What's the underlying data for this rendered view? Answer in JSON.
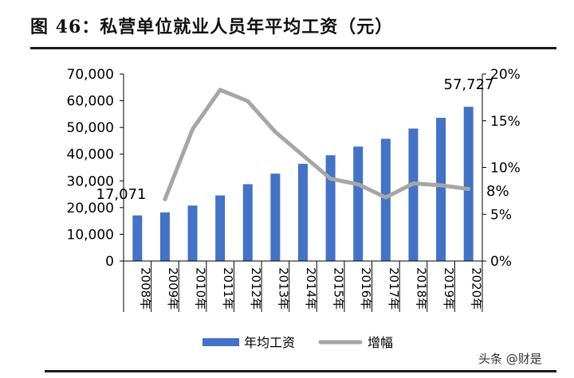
{
  "title": "图 46：私营单位就业人员年平均工资（元）",
  "watermark": "头条 @财是",
  "chart_data": {
    "type": "bar",
    "categories": [
      "2008年",
      "2009年",
      "2010年",
      "2011年",
      "2012年",
      "2013年",
      "2014年",
      "2015年",
      "2016年",
      "2017年",
      "2018年",
      "2019年",
      "2020年"
    ],
    "series": [
      {
        "name": "年均工资",
        "type": "bar",
        "axis": "left",
        "color": "#4472c4",
        "values": [
          17071,
          18199,
          20759,
          24556,
          28752,
          32706,
          36390,
          39589,
          42833,
          45761,
          49575,
          53604,
          57727
        ]
      },
      {
        "name": "增幅",
        "type": "line",
        "axis": "right",
        "color": "#a6a6a6",
        "values": [
          null,
          6.6,
          14.1,
          18.3,
          17.1,
          13.8,
          11.3,
          8.8,
          8.2,
          6.8,
          8.3,
          8.1,
          7.7
        ]
      }
    ],
    "y_left": {
      "range": [
        0,
        70000
      ],
      "ticks": [
        "0",
        "10,000",
        "20,000",
        "30,000",
        "40,000",
        "50,000",
        "60,000",
        "70,000"
      ]
    },
    "y_right": {
      "range": [
        0,
        20
      ],
      "ticks": [
        "0%",
        "5%",
        "10%",
        "15%",
        "20%"
      ]
    },
    "annotations": [
      "17,071",
      "57,727",
      "8%"
    ],
    "legend": {
      "position": "bottom",
      "items": [
        "年均工资",
        "增幅"
      ]
    },
    "grid": false
  }
}
